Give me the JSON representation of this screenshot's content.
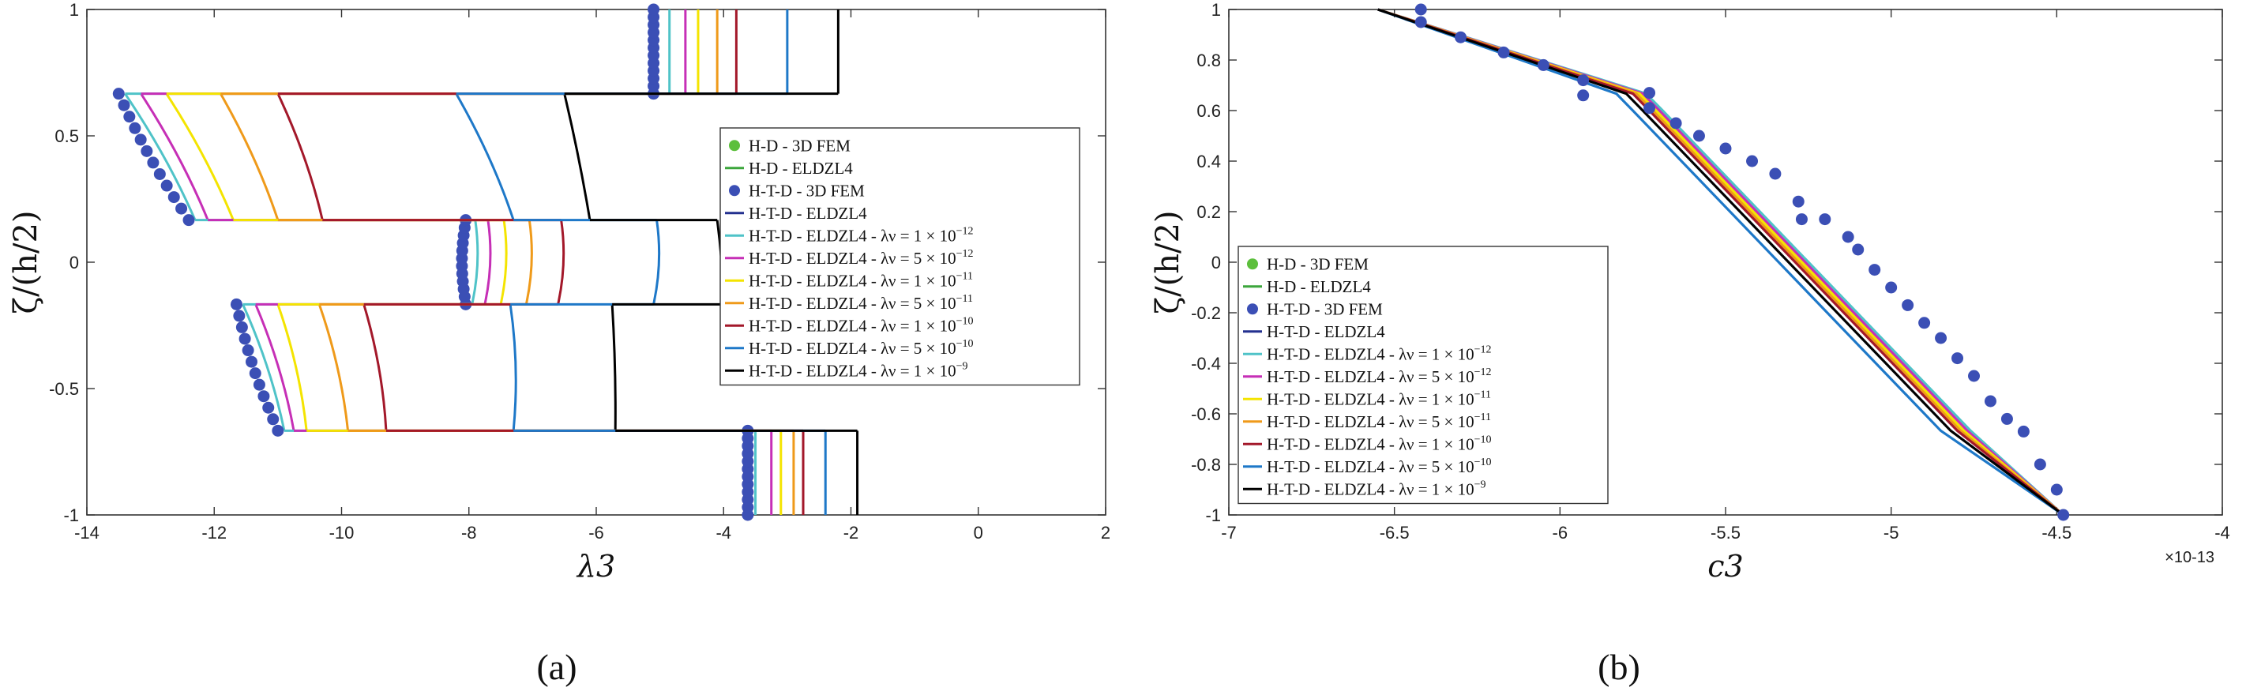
{
  "chart_data": [
    {
      "type": "line",
      "panel_label": "(a)",
      "xlabel": "λ3",
      "ylabel": "ζ/(h/2)",
      "xlim": [
        -14,
        2
      ],
      "ylim": [
        -1,
        1
      ],
      "xticks": [
        "-14",
        "-12",
        "-10",
        "-8",
        "-6",
        "-4",
        "-2",
        "0",
        "2"
      ],
      "yticks": [
        "-1",
        "-0.5",
        "0",
        "0.5",
        "1"
      ],
      "grid": false,
      "legend_position": "right-center",
      "layers": [
        {
          "zeta": [
            -1,
            -0.6667
          ],
          "fem": -3.62,
          "lines": [
            -3.5,
            -3.25,
            -3.1,
            -2.9,
            -2.75,
            -2.4,
            -1.9
          ]
        },
        {
          "zeta": [
            -0.6667,
            -0.1667
          ],
          "fem_bottom": -11.0,
          "fem_top": -11.65,
          "lines_bottom": [
            -10.9,
            -10.75,
            -10.55,
            -9.9,
            -9.3,
            -7.3,
            -5.7
          ],
          "lines_top": [
            -11.55,
            -11.35,
            -11.0,
            -10.35,
            -9.65,
            -7.35,
            -5.75
          ]
        },
        {
          "zeta": [
            -0.1667,
            0.1667
          ],
          "fem_bottom": -8.05,
          "fem_top": -8.05,
          "lines_bottom": [
            -7.95,
            -7.75,
            -7.5,
            -7.1,
            -6.6,
            -5.1,
            -4.0
          ],
          "lines_top": [
            -7.9,
            -7.7,
            -7.45,
            -7.05,
            -6.55,
            -5.05,
            -4.1
          ]
        },
        {
          "zeta": [
            0.1667,
            0.6667
          ],
          "fem_bottom": -12.4,
          "fem_top": -13.5,
          "lines_bottom": [
            -12.3,
            -12.1,
            -11.7,
            -11.0,
            -10.3,
            -7.3,
            -6.1
          ],
          "lines_top": [
            -13.4,
            -13.15,
            -12.75,
            -11.9,
            -11.0,
            -8.2,
            -6.5
          ]
        },
        {
          "zeta": [
            0.6667,
            1
          ],
          "fem": -5.1,
          "lines": [
            -4.85,
            -4.6,
            -4.4,
            -4.1,
            -3.8,
            -3.0,
            -2.2
          ]
        }
      ]
    },
    {
      "type": "line",
      "panel_label": "(b)",
      "xlabel": "c3",
      "ylabel": "ζ/(h/2)",
      "xlim": [
        -7,
        -4
      ],
      "ylim": [
        -1,
        1
      ],
      "x_multiplier": "×10-13",
      "xticks": [
        "-7",
        "-6.5",
        "-6",
        "-5.5",
        "-5",
        "-4.5",
        "-4"
      ],
      "yticks": [
        "-1",
        "-0.8",
        "-0.6",
        "-0.4",
        "-0.2",
        "0",
        "0.2",
        "0.4",
        "0.6",
        "0.8",
        "1"
      ],
      "grid": false,
      "legend_position": "bottom-left",
      "black_line": {
        "x": [
          -6.55,
          -5.8,
          -5.75,
          -4.82,
          -4.48
        ],
        "y": [
          1,
          0.667,
          0.6,
          -0.667,
          -1
        ]
      },
      "fem_points": {
        "x": [
          -6.42,
          -6.42,
          -6.3,
          -6.17,
          -6.05,
          -5.93,
          -5.93,
          -5.73,
          -5.73,
          -5.65,
          -5.58,
          -5.5,
          -5.42,
          -5.35,
          -5.28,
          -5.27,
          -5.2,
          -5.13,
          -5.1,
          -5.05,
          -5.0,
          -4.95,
          -4.9,
          -4.85,
          -4.8,
          -4.75,
          -4.7,
          -4.65,
          -4.6,
          -4.55,
          -4.5,
          -4.48
        ],
        "y": [
          1,
          0.95,
          0.89,
          0.83,
          0.78,
          0.72,
          0.66,
          0.67,
          0.61,
          0.55,
          0.5,
          0.45,
          0.4,
          0.35,
          0.24,
          0.17,
          0.17,
          0.1,
          0.05,
          -0.03,
          -0.1,
          -0.17,
          -0.24,
          -0.3,
          -0.38,
          -0.45,
          -0.55,
          -0.62,
          -0.67,
          -0.8,
          -0.9,
          -1
        ]
      }
    }
  ],
  "legend": {
    "entries": [
      {
        "label": "H-D - 3D FEM",
        "color": "#5cbf3c",
        "kind": "dot"
      },
      {
        "label": "H-D - ELDZL4",
        "color": "#3ca63c",
        "kind": "line"
      },
      {
        "label": "H-T-D - 3D FEM",
        "color": "#3b4fb5",
        "kind": "dot"
      },
      {
        "label": "H-T-D - ELDZL4",
        "color": "#23308f",
        "kind": "line"
      },
      {
        "label": "H-T-D - ELDZL4 - λν = 1 × 10",
        "sup": "−12",
        "color": "#4fc3c8",
        "kind": "line"
      },
      {
        "label": "H-T-D - ELDZL4 - λν = 5 × 10",
        "sup": "−12",
        "color": "#c62fb6",
        "kind": "line"
      },
      {
        "label": "H-T-D - ELDZL4 - λν = 1 × 10",
        "sup": "−11",
        "color": "#f4e400",
        "kind": "line"
      },
      {
        "label": "H-T-D - ELDZL4 - λν = 5 × 10",
        "sup": "−11",
        "color": "#ef9a1a",
        "kind": "line"
      },
      {
        "label": "H-T-D - ELDZL4 - λν = 1 × 10",
        "sup": "−10",
        "color": "#a3182a",
        "kind": "line"
      },
      {
        "label": "H-T-D - ELDZL4 - λν = 5 × 10",
        "sup": "−10",
        "color": "#1e78c8",
        "kind": "line"
      },
      {
        "label": "H-T-D - ELDZL4 - λν = 1 × 10",
        "sup": "−9",
        "color": "#000000",
        "kind": "line"
      }
    ]
  },
  "colors": {
    "series": [
      "#4fc3c8",
      "#c62fb6",
      "#f4e400",
      "#ef9a1a",
      "#a3182a",
      "#1e78c8",
      "#000000"
    ],
    "fem_dot": "#3b4fb5"
  }
}
